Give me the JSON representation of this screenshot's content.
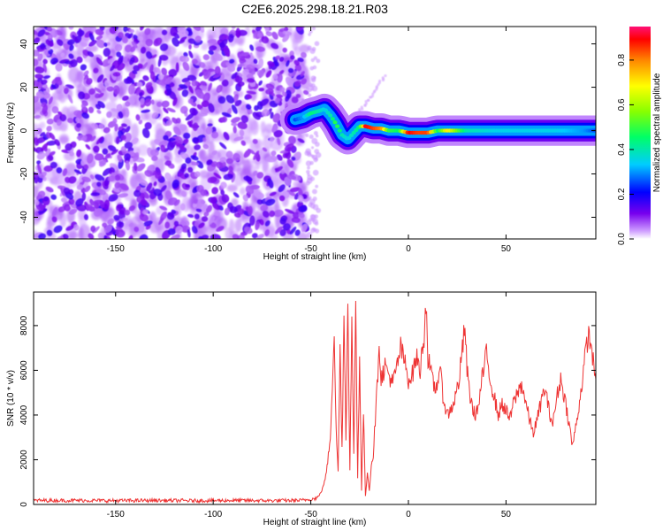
{
  "title": "C2E6.2025.298.18.21.R03",
  "chart_data": [
    {
      "type": "heatmap",
      "xlabel": "Height of straight line (km)",
      "ylabel": "Frequency (Hz)",
      "xlim": [
        -192,
        96
      ],
      "ylim": [
        -50,
        48
      ],
      "xticks": [
        -150,
        -100,
        -50,
        0,
        50
      ],
      "yticks": [
        -40,
        -20,
        0,
        20,
        40
      ],
      "colorbar": {
        "label": "Normalized spectral amplitude",
        "range": [
          0,
          0.95
        ],
        "ticks": [
          0.0,
          0.2,
          0.4,
          0.6,
          0.8
        ]
      },
      "noise_region": {
        "x": [
          -192,
          -52
        ],
        "y": [
          -50,
          48
        ],
        "typical_amplitude": 0.12
      },
      "signal_track": [
        {
          "x": -58,
          "freq": 5,
          "amp": 0.25
        },
        {
          "x": -54,
          "freq": 6,
          "amp": 0.3
        },
        {
          "x": -50,
          "freq": 8,
          "amp": 0.45
        },
        {
          "x": -46,
          "freq": 9,
          "amp": 0.4
        },
        {
          "x": -43,
          "freq": 10,
          "amp": 0.35
        },
        {
          "x": -40,
          "freq": 7,
          "amp": 0.4
        },
        {
          "x": -37,
          "freq": 3,
          "amp": 0.5
        },
        {
          "x": -34,
          "freq": -2,
          "amp": 0.4
        },
        {
          "x": -31,
          "freq": -4,
          "amp": 0.35
        },
        {
          "x": -28,
          "freq": -1,
          "amp": 0.4
        },
        {
          "x": -25,
          "freq": 2,
          "amp": 0.45
        },
        {
          "x": -22,
          "freq": 2,
          "amp": 0.9
        },
        {
          "x": -18,
          "freq": 1,
          "amp": 0.85
        },
        {
          "x": -14,
          "freq": 1,
          "amp": 0.8
        },
        {
          "x": -10,
          "freq": 0,
          "amp": 0.5
        },
        {
          "x": -5,
          "freq": 0,
          "amp": 0.45
        },
        {
          "x": 0,
          "freq": -1,
          "amp": 0.9
        },
        {
          "x": 5,
          "freq": -1,
          "amp": 0.85
        },
        {
          "x": 10,
          "freq": -1,
          "amp": 0.85
        },
        {
          "x": 15,
          "freq": 0,
          "amp": 0.45
        },
        {
          "x": 20,
          "freq": 0,
          "amp": 0.7
        },
        {
          "x": 30,
          "freq": 0,
          "amp": 0.4
        },
        {
          "x": 45,
          "freq": 0,
          "amp": 0.35
        },
        {
          "x": 60,
          "freq": 0,
          "amp": 0.35
        },
        {
          "x": 75,
          "freq": 0,
          "amp": 0.35
        },
        {
          "x": 90,
          "freq": 0,
          "amp": 0.3
        },
        {
          "x": 96,
          "freq": 0,
          "amp": 0.25
        }
      ],
      "faint_streak": {
        "x": [
          -27,
          -12
        ],
        "freq": [
          6,
          25
        ]
      }
    },
    {
      "type": "line",
      "xlabel": "Height of straight line (km)",
      "ylabel": "SNR (10 * v/v)",
      "xlim": [
        -192,
        96
      ],
      "ylim": [
        0,
        9500
      ],
      "xticks": [
        -150,
        -100,
        -50,
        0,
        50
      ],
      "yticks": [
        0,
        2000,
        4000,
        6000,
        8000
      ],
      "color": "#ee3333",
      "series": [
        {
          "points": [
            [
              -192,
              180
            ],
            [
              -170,
              180
            ],
            [
              -150,
              170
            ],
            [
              -130,
              180
            ],
            [
              -110,
              170
            ],
            [
              -90,
              180
            ],
            [
              -70,
              170
            ],
            [
              -55,
              180
            ],
            [
              -48,
              260
            ],
            [
              -46,
              350
            ],
            [
              -44,
              700
            ],
            [
              -42,
              1400
            ],
            [
              -40,
              3000
            ],
            [
              -39,
              5400
            ],
            [
              -38,
              7800
            ],
            [
              -37,
              3200
            ],
            [
              -36,
              1500
            ],
            [
              -35,
              7000
            ],
            [
              -34,
              2500
            ],
            [
              -33,
              8600
            ],
            [
              -32,
              3000
            ],
            [
              -31,
              9300
            ],
            [
              -30,
              1500
            ],
            [
              -29,
              8000
            ],
            [
              -28,
              2200
            ],
            [
              -27,
              9000
            ],
            [
              -26,
              1200
            ],
            [
              -25,
              6800
            ],
            [
              -24,
              600
            ],
            [
              -23,
              4200
            ],
            [
              -22,
              300
            ],
            [
              -21,
              1500
            ],
            [
              -20,
              600
            ],
            [
              -19,
              1800
            ],
            [
              -18,
              2200
            ],
            [
              -17,
              3800
            ],
            [
              -16,
              5200
            ],
            [
              -15,
              7400
            ],
            [
              -14,
              5600
            ],
            [
              -12,
              6200
            ],
            [
              -10,
              5800
            ],
            [
              -8,
              5400
            ],
            [
              -6,
              6100
            ],
            [
              -4,
              7000
            ],
            [
              -2,
              6400
            ],
            [
              0,
              5600
            ],
            [
              2,
              5800
            ],
            [
              4,
              6600
            ],
            [
              6,
              6000
            ],
            [
              8,
              7600
            ],
            [
              9,
              9200
            ],
            [
              10,
              6600
            ],
            [
              12,
              5600
            ],
            [
              14,
              5100
            ],
            [
              16,
              6100
            ],
            [
              18,
              4700
            ],
            [
              20,
              4000
            ],
            [
              22,
              4300
            ],
            [
              24,
              4800
            ],
            [
              26,
              5600
            ],
            [
              28,
              7200
            ],
            [
              29,
              8000
            ],
            [
              30,
              6000
            ],
            [
              32,
              4600
            ],
            [
              34,
              4000
            ],
            [
              36,
              4400
            ],
            [
              38,
              5800
            ],
            [
              40,
              6700
            ],
            [
              42,
              5600
            ],
            [
              44,
              4800
            ],
            [
              46,
              4000
            ],
            [
              48,
              4500
            ],
            [
              50,
              4200
            ],
            [
              52,
              3800
            ],
            [
              54,
              4600
            ],
            [
              56,
              5000
            ],
            [
              58,
              5400
            ],
            [
              60,
              4600
            ],
            [
              62,
              3800
            ],
            [
              64,
              3200
            ],
            [
              66,
              3800
            ],
            [
              68,
              4600
            ],
            [
              70,
              5200
            ],
            [
              72,
              4200
            ],
            [
              74,
              3600
            ],
            [
              76,
              4800
            ],
            [
              78,
              5600
            ],
            [
              80,
              4800
            ],
            [
              82,
              3800
            ],
            [
              84,
              2600
            ],
            [
              86,
              3600
            ],
            [
              88,
              4800
            ],
            [
              90,
              6200
            ],
            [
              92,
              7600
            ],
            [
              94,
              7000
            ],
            [
              95,
              6000
            ],
            [
              96,
              5600
            ]
          ]
        }
      ]
    }
  ]
}
